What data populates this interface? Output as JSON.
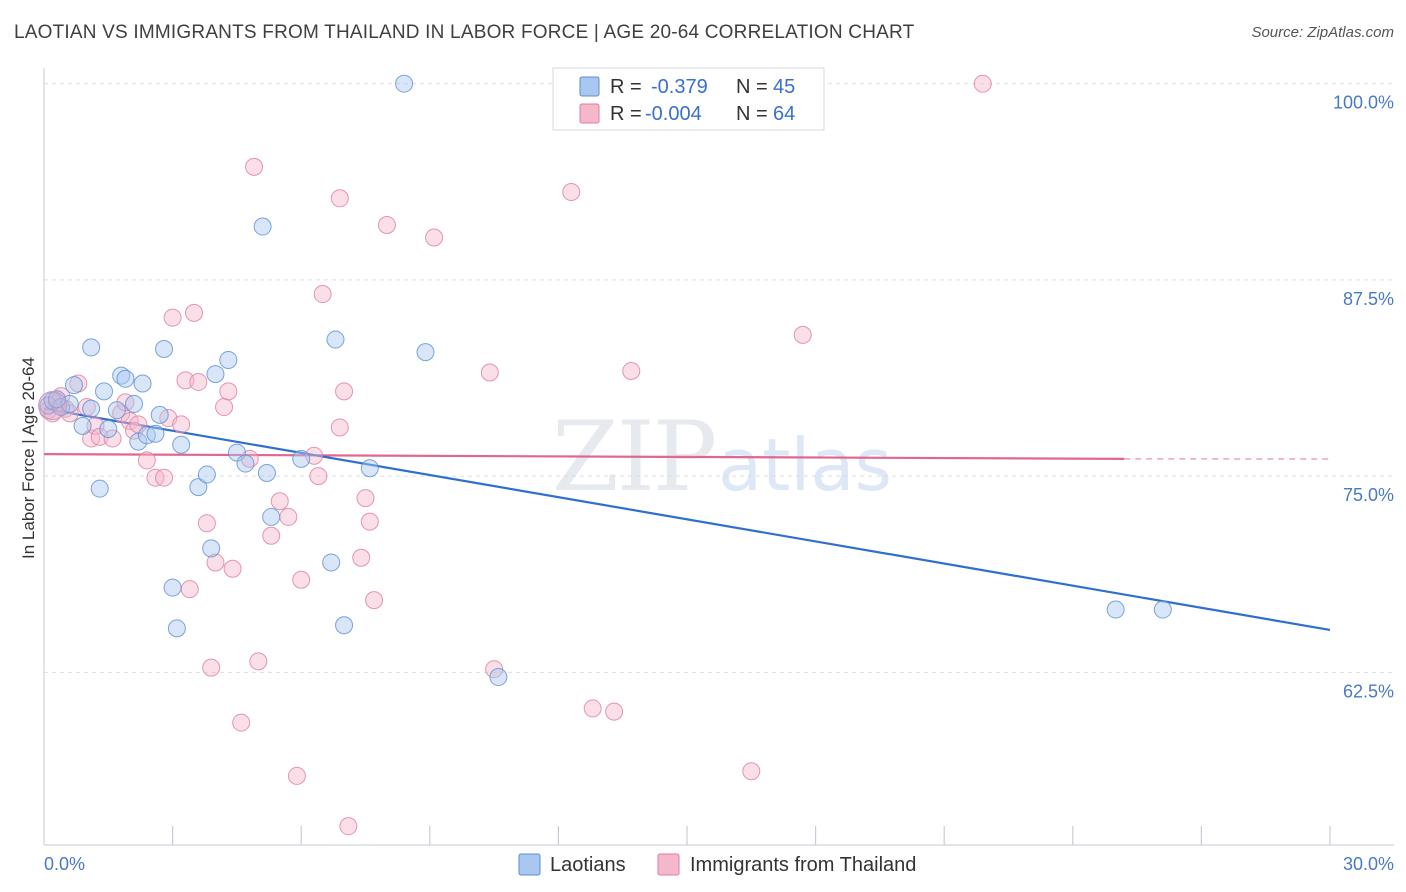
{
  "header": {
    "title": "LAOTIAN VS IMMIGRANTS FROM THAILAND IN LABOR FORCE | AGE 20-64 CORRELATION CHART",
    "source": "Source: ZipAtlas.com"
  },
  "watermark": {
    "zip": "ZIP",
    "atlas": "atlas"
  },
  "legend": {
    "rows": [
      {
        "r_label": "R =",
        "r_value": "-0.379",
        "n_label": "N =",
        "n_value": "45",
        "color": "#a9c7ef"
      },
      {
        "r_label": "R =",
        "r_value": "-0.004",
        "n_label": "N =",
        "n_value": "64",
        "color": "#f5b8cb"
      }
    ]
  },
  "bottom_legend": {
    "items": [
      {
        "label": "Laotians",
        "color": "#a9c7ef"
      },
      {
        "label": "Immigrants from Thailand",
        "color": "#f5b8cb"
      }
    ]
  },
  "chart_data": {
    "type": "scatter",
    "title": "LAOTIAN VS IMMIGRANTS FROM THAILAND IN LABOR FORCE | AGE 20-64 CORRELATION CHART",
    "ylabel": "In Labor Force | Age 20-64",
    "xlabel": "",
    "xlim": [
      0,
      30
    ],
    "ylim": [
      51.5,
      101
    ],
    "y_ticks": [
      62.5,
      75.0,
      87.5,
      100.0
    ],
    "y_tick_labels": [
      "62.5%",
      "75.0%",
      "87.5%",
      "100.0%"
    ],
    "x_tick_labels": [
      "0.0%",
      "30.0%"
    ],
    "x_minor_ticks": [
      3,
      6,
      9,
      12,
      15,
      18,
      21,
      24,
      27,
      30
    ],
    "grid": true,
    "legend_position": "top-center",
    "series": [
      {
        "name": "Laotians",
        "color": "#a9c7ef",
        "stroke": "#5b8fd6",
        "trend": {
          "x0": 0,
          "y0": 79.3,
          "x1": 30,
          "y1": 65.2,
          "color": "#2f6fd0"
        },
        "points": [
          [
            0.1,
            79.5
          ],
          [
            0.2,
            79.8
          ],
          [
            0.4,
            79.4
          ],
          [
            0.6,
            79.6
          ],
          [
            0.7,
            80.8
          ],
          [
            0.9,
            78.2
          ],
          [
            1.1,
            79.3
          ],
          [
            1.1,
            83.2
          ],
          [
            1.3,
            74.2
          ],
          [
            1.4,
            80.4
          ],
          [
            1.5,
            78.0
          ],
          [
            1.7,
            79.2
          ],
          [
            1.8,
            81.4
          ],
          [
            1.9,
            81.2
          ],
          [
            2.1,
            79.6
          ],
          [
            2.2,
            77.2
          ],
          [
            2.3,
            80.9
          ],
          [
            2.4,
            77.6
          ],
          [
            2.6,
            77.7
          ],
          [
            2.7,
            78.9
          ],
          [
            2.8,
            83.1
          ],
          [
            3.0,
            67.9
          ],
          [
            3.1,
            65.3
          ],
          [
            3.2,
            77.0
          ],
          [
            3.6,
            74.3
          ],
          [
            3.8,
            75.1
          ],
          [
            3.9,
            70.4
          ],
          [
            4.0,
            81.5
          ],
          [
            4.3,
            82.4
          ],
          [
            4.5,
            76.5
          ],
          [
            4.7,
            75.8
          ],
          [
            5.1,
            90.9
          ],
          [
            5.2,
            75.2
          ],
          [
            5.3,
            72.4
          ],
          [
            6.0,
            76.1
          ],
          [
            6.7,
            69.5
          ],
          [
            6.8,
            83.7
          ],
          [
            7.0,
            65.5
          ],
          [
            7.6,
            75.5
          ],
          [
            8.4,
            100.0
          ],
          [
            8.9,
            82.9
          ],
          [
            10.6,
            62.2
          ],
          [
            25.0,
            66.5
          ],
          [
            26.1,
            66.5
          ],
          [
            0.3,
            79.9
          ]
        ]
      },
      {
        "name": "Immigrants from Thailand",
        "color": "#f5b8cb",
        "stroke": "#e07d9e",
        "trend": {
          "x0": 0,
          "y0": 76.4,
          "x1": 25.2,
          "y1": 76.1,
          "color": "#e2668f",
          "dash_to": 30
        },
        "points": [
          [
            0.1,
            79.2
          ],
          [
            0.2,
            79.0
          ],
          [
            0.3,
            79.7
          ],
          [
            0.4,
            80.1
          ],
          [
            0.5,
            79.3
          ],
          [
            0.6,
            79.0
          ],
          [
            0.8,
            80.9
          ],
          [
            1.0,
            79.4
          ],
          [
            1.1,
            77.4
          ],
          [
            1.2,
            78.2
          ],
          [
            1.3,
            77.5
          ],
          [
            1.6,
            77.4
          ],
          [
            1.8,
            79.0
          ],
          [
            1.9,
            79.7
          ],
          [
            2.0,
            78.5
          ],
          [
            2.1,
            77.9
          ],
          [
            2.2,
            78.3
          ],
          [
            2.4,
            76.0
          ],
          [
            2.6,
            74.9
          ],
          [
            2.8,
            74.9
          ],
          [
            2.9,
            78.7
          ],
          [
            3.0,
            85.1
          ],
          [
            3.2,
            78.3
          ],
          [
            3.3,
            81.1
          ],
          [
            3.5,
            85.4
          ],
          [
            3.4,
            67.8
          ],
          [
            3.6,
            81.0
          ],
          [
            3.8,
            72.0
          ],
          [
            3.9,
            62.8
          ],
          [
            4.0,
            69.5
          ],
          [
            4.2,
            79.4
          ],
          [
            4.3,
            80.4
          ],
          [
            4.4,
            69.1
          ],
          [
            4.6,
            59.3
          ],
          [
            4.8,
            76.1
          ],
          [
            4.9,
            94.7
          ],
          [
            5.0,
            63.2
          ],
          [
            5.3,
            71.2
          ],
          [
            5.5,
            73.4
          ],
          [
            5.7,
            72.4
          ],
          [
            5.9,
            55.9
          ],
          [
            6.0,
            68.4
          ],
          [
            6.3,
            76.3
          ],
          [
            6.4,
            75.0
          ],
          [
            6.5,
            86.6
          ],
          [
            6.9,
            92.7
          ],
          [
            6.9,
            78.1
          ],
          [
            7.0,
            80.4
          ],
          [
            7.1,
            52.7
          ],
          [
            7.4,
            69.8
          ],
          [
            7.5,
            73.6
          ],
          [
            7.6,
            72.1
          ],
          [
            7.7,
            67.1
          ],
          [
            8.0,
            91.0
          ],
          [
            9.1,
            90.2
          ],
          [
            10.4,
            81.6
          ],
          [
            10.5,
            62.7
          ],
          [
            12.3,
            93.1
          ],
          [
            12.8,
            60.2
          ],
          [
            13.3,
            60.0
          ],
          [
            13.7,
            81.7
          ],
          [
            16.5,
            56.2
          ],
          [
            17.7,
            84.0
          ],
          [
            21.9,
            100.0
          ]
        ]
      }
    ]
  }
}
